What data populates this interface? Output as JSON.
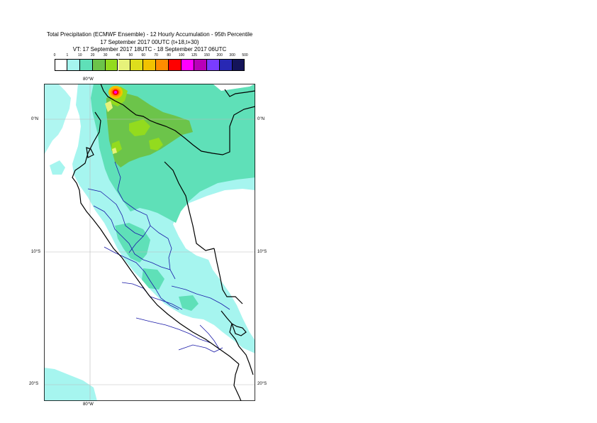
{
  "title": {
    "line1": "Total Precipitation (ECMWF Ensemble) - 12 Hourly Accumulation - 95th Percentile",
    "line2": "17 September 2017 00UTC (t+18,t+30)",
    "line3": "VT: 17 September 2017 18UTC - 18 September 2017 06UTC"
  },
  "legend": {
    "labels": [
      "0",
      "1",
      "10",
      "20",
      "30",
      "40",
      "50",
      "60",
      "70",
      "80",
      "100",
      "125",
      "150",
      "200",
      "300",
      "500"
    ],
    "colors": [
      "#ffffff",
      "#a6f5ef",
      "#5fe0b8",
      "#6cc44a",
      "#93db1e",
      "#e6f27a",
      "#dede1c",
      "#f2c200",
      "#ff8c00",
      "#ff0000",
      "#ff00ff",
      "#b800b8",
      "#7a3cff",
      "#2828b4",
      "#14145a"
    ]
  },
  "axes": {
    "lon_top": "80°W",
    "lon_bottom": "80°W",
    "lat_left": [
      "0°N",
      "10°S",
      "20°S"
    ],
    "lat_right": [
      "0°N",
      "10°S",
      "20°S"
    ]
  }
}
